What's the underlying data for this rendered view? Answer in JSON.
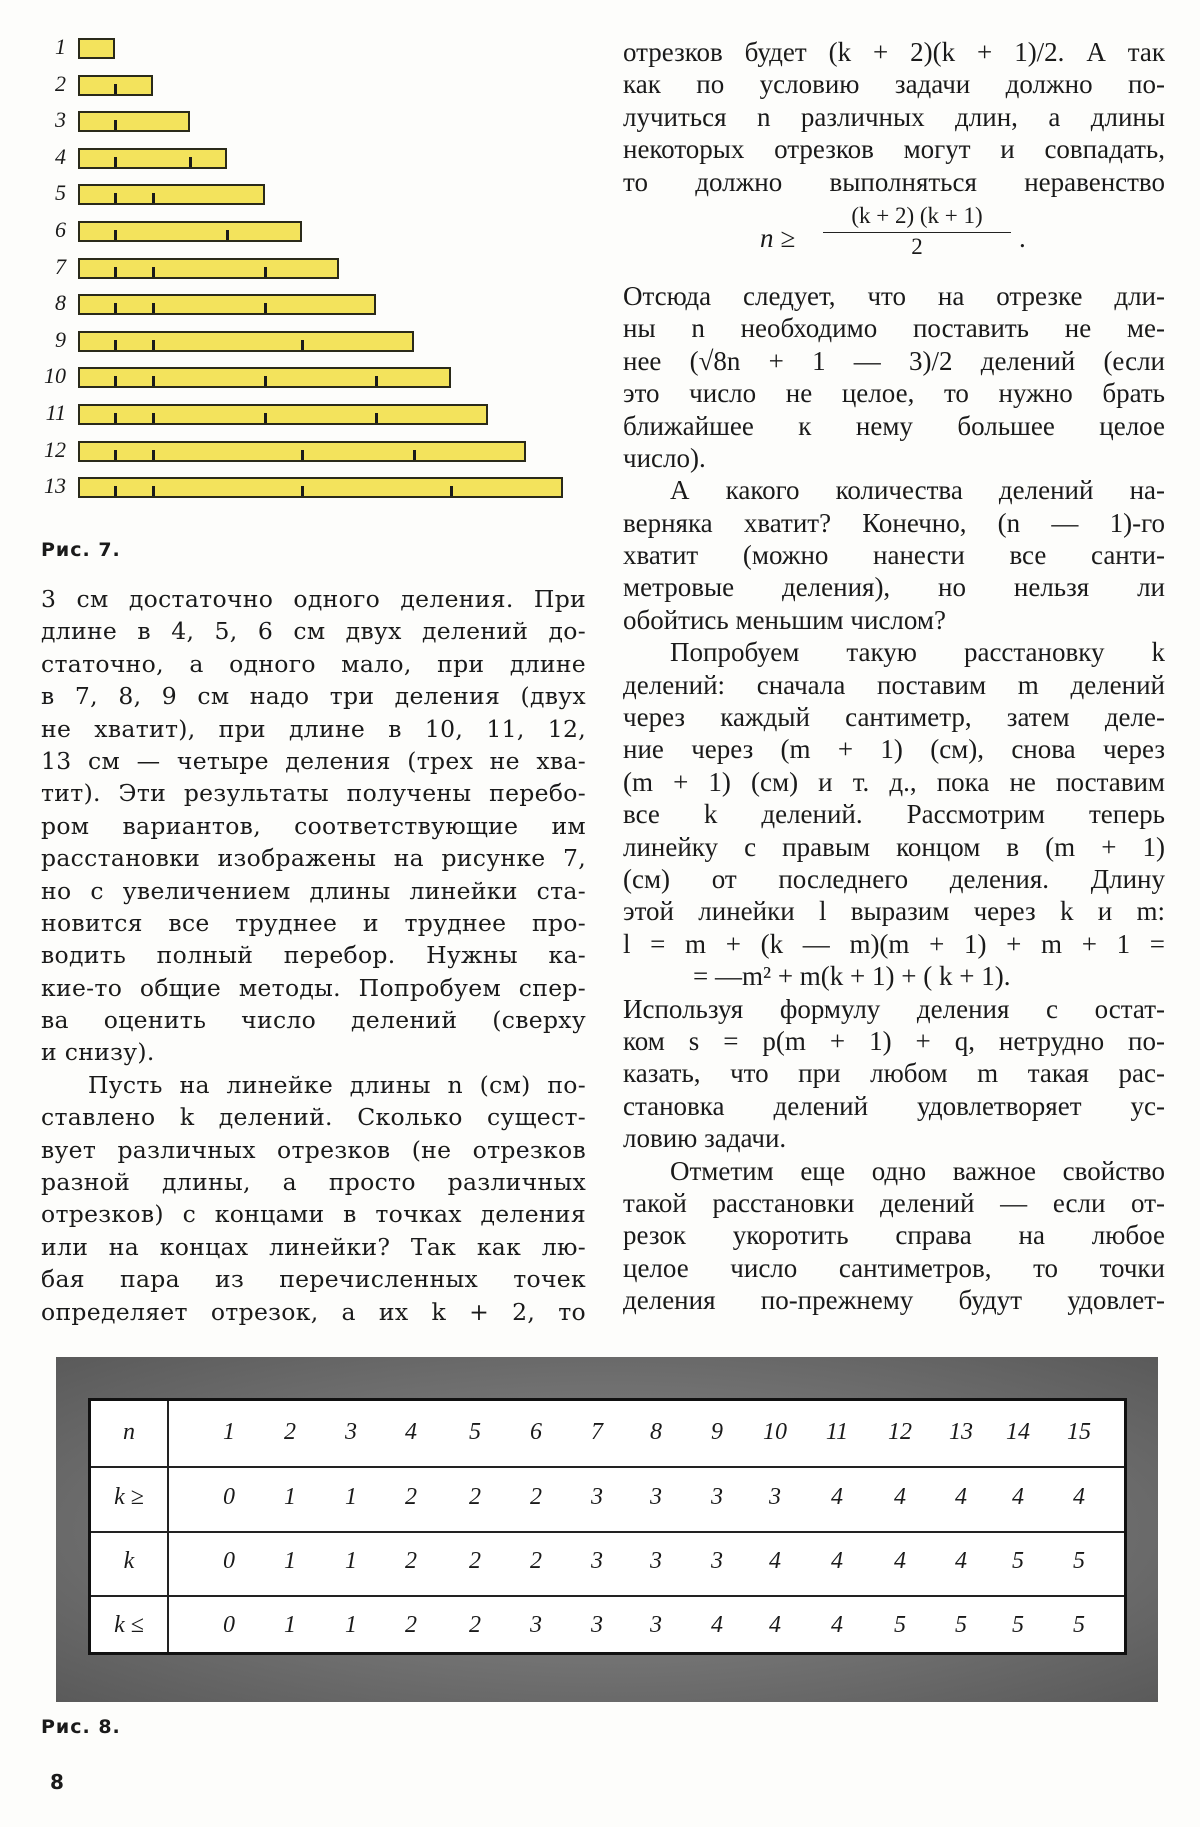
{
  "figure7": {
    "caption": "Рис. 7.",
    "ruler_color": "#f3e35c",
    "rulers": [
      {
        "label": "1",
        "length": 1,
        "ticks": []
      },
      {
        "label": "2",
        "length": 2,
        "ticks": [
          1
        ]
      },
      {
        "label": "3",
        "length": 3,
        "ticks": [
          1
        ]
      },
      {
        "label": "4",
        "length": 4,
        "ticks": [
          1,
          3
        ]
      },
      {
        "label": "5",
        "length": 5,
        "ticks": [
          1,
          2
        ]
      },
      {
        "label": "6",
        "length": 6,
        "ticks": [
          1,
          4
        ]
      },
      {
        "label": "7",
        "length": 7,
        "ticks": [
          1,
          2,
          5
        ]
      },
      {
        "label": "8",
        "length": 8,
        "ticks": [
          1,
          2,
          5
        ]
      },
      {
        "label": "9",
        "length": 9,
        "ticks": [
          1,
          2,
          6
        ]
      },
      {
        "label": "10",
        "length": 10,
        "ticks": [
          1,
          2,
          5,
          8
        ]
      },
      {
        "label": "11",
        "length": 11,
        "ticks": [
          1,
          2,
          5,
          8
        ]
      },
      {
        "label": "12",
        "length": 12,
        "ticks": [
          1,
          2,
          6,
          9
        ]
      },
      {
        "label": "13",
        "length": 13,
        "ticks": [
          1,
          2,
          6,
          10
        ]
      }
    ]
  },
  "left_column": {
    "paragraphs": [
      {
        "indent": false,
        "lines": [
          "3 см достаточно одного деления. При",
          "длине в 4, 5, 6 см двух делений до-",
          "статочно, а одного мало, при длине",
          "в 7, 8, 9 см надо три деления (двух",
          "не хватит), при длине в 10, 11, 12,",
          "13 см — четыре деления (трех не хва-",
          "тит). Эти результаты получены перебо-",
          "ром вариантов, соответствующие им",
          "расстановки изображены на рисунке 7,",
          "но с увеличением длины линейки ста-",
          "новится все труднее и труднее про-",
          "водить полный перебор. Нужны ка-",
          "кие-то общие методы. Попробуем спер-",
          "ва оценить число делений (сверху",
          "и снизу)."
        ]
      },
      {
        "indent": true,
        "lines": [
          "Пусть на линейке длины n (см) по-",
          "ставлено k делений. Сколько сущест-",
          "вует различных отрезков (не отрезков",
          "разной длины, а просто различных",
          "отрезков) с концами в точках деления",
          "или на концах линейки? Так как лю-",
          "бая пара из перечисленных точек",
          "определяет отрезок, а их k + 2, то"
        ],
        "continues": true
      }
    ]
  },
  "right_column": {
    "intro_lines": [
      "отрезков будет (k + 2)(k + 1)/2. А так",
      "как по условию задачи должно по-",
      "лучиться n различных длин, а длины",
      "некоторых отрезков могут и совпадать,",
      "то должно выполняться неравенство"
    ],
    "formula": {
      "lhs": "n ≥",
      "numerator": "(k + 2) (k + 1)",
      "denominator": "2",
      "end": "."
    },
    "paragraphs": [
      {
        "indent": false,
        "lines": [
          "Отсюда следует, что на отрезке дли-",
          "ны n необходимо поставить не ме-",
          "нее (√8n + 1 — 3)/2 делений (если",
          "это число не целое, то нужно брать",
          "ближайшее к нему большее целое",
          "число)."
        ]
      },
      {
        "indent": true,
        "lines": [
          "А какого количества делений на-",
          "верняка хватит? Конечно, (n — 1)-го",
          "хватит (можно нанести все санти-",
          "метровые деления), но нельзя ли",
          "обойтись меньшим числом?"
        ]
      },
      {
        "indent": true,
        "lines": [
          "Попробуем такую расстановку k",
          "делений: сначала поставим m делений",
          "через каждый сантиметр, затем деле-",
          "ние через (m + 1) (см), снова через",
          "(m + 1) (см) и т. д., пока не поставим",
          "все k делений. Рассмотрим теперь",
          "линейку с правым концом в (m + 1)",
          "(см) от последнего деления. Длину",
          "этой линейки l выразим через k и m:",
          "l = m + (k — m)(m + 1) + m + 1 =",
          "= —m² + m(k + 1) + ( k + 1)."
        ],
        "formula_tail": true
      },
      {
        "indent": false,
        "lines": [
          "Используя формулу деления с остат-",
          "ком s = p(m + 1) + q, нетрудно по-",
          "казать, что при любом m такая рас-",
          "становка делений удовлетворяет ус-",
          "ловию задачи."
        ]
      },
      {
        "indent": true,
        "lines": [
          "Отметим еще одно важное свойство",
          "такой расстановки делений — если от-",
          "резок укоротить справа на любое",
          "целое число сантиметров, то точки",
          "деления по-прежнему будут удовлет-"
        ],
        "continues": true
      }
    ]
  },
  "figure8": {
    "caption": "Рис. 8.",
    "table": {
      "rows": [
        {
          "label": "n",
          "values": [
            "1",
            "2",
            "3",
            "4",
            "5",
            "6",
            "7",
            "8",
            "9",
            "10",
            "11",
            "12",
            "13",
            "14",
            "15"
          ]
        },
        {
          "label": "k ≥",
          "values": [
            "0",
            "1",
            "1",
            "2",
            "2",
            "2",
            "3",
            "3",
            "3",
            "3",
            "4",
            "4",
            "4",
            "4",
            "4"
          ]
        },
        {
          "label": "k",
          "values": [
            "0",
            "1",
            "1",
            "2",
            "2",
            "2",
            "3",
            "3",
            "3",
            "4",
            "4",
            "4",
            "4",
            "5",
            "5"
          ]
        },
        {
          "label": "k ≤",
          "values": [
            "0",
            "1",
            "1",
            "2",
            "2",
            "3",
            "3",
            "3",
            "4",
            "4",
            "4",
            "5",
            "5",
            "5",
            "5"
          ]
        }
      ]
    }
  },
  "page_number": "8"
}
